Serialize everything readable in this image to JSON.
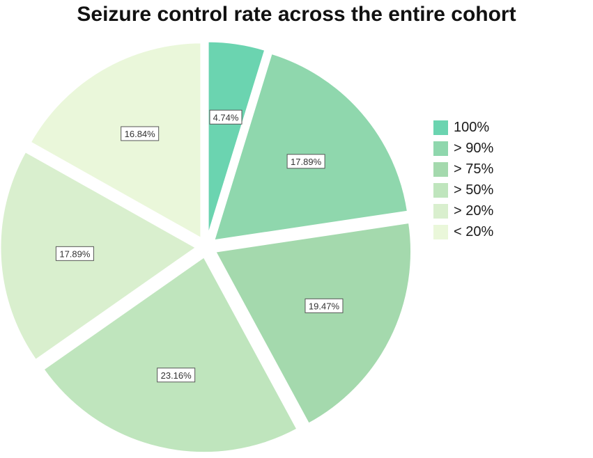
{
  "chart_data": {
    "type": "pie",
    "title": "Seizure control rate across the entire cohort",
    "slices": [
      {
        "label": "100%",
        "value": 4.74,
        "display": "4.74%",
        "color": "#6bd4b0"
      },
      {
        "label": "> 90%",
        "value": 17.89,
        "display": "17.89%",
        "color": "#8fd7ad"
      },
      {
        "label": "> 75%",
        "value": 19.47,
        "display": "19.47%",
        "color": "#a4d9ad"
      },
      {
        "label": "> 50%",
        "value": 23.16,
        "display": "23.16%",
        "color": "#bfe5bd"
      },
      {
        "label": "> 20%",
        "value": 17.89,
        "display": "17.89%",
        "color": "#d9efce"
      },
      {
        "label": "< 20%",
        "value": 16.84,
        "display": "16.84%",
        "color": "#eaf7da"
      }
    ],
    "legend_position": "right"
  }
}
